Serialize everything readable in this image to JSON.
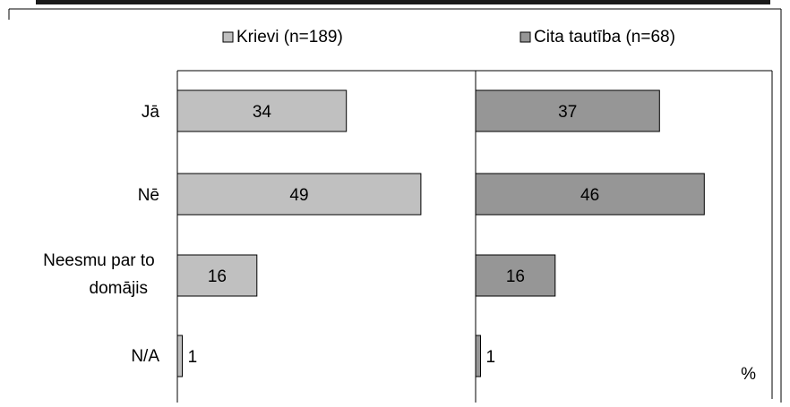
{
  "chart_data": {
    "type": "bar",
    "orientation": "horizontal",
    "layout": "two side-by-side panels sharing category rows",
    "title": "",
    "categories": [
      [
        "Jā"
      ],
      [
        "Nē"
      ],
      [
        "Neesmu par to",
        "domājis"
      ],
      [
        "N/A"
      ]
    ],
    "series": [
      {
        "name": "Krievi (n=189)",
        "values": [
          34,
          49,
          16,
          1
        ],
        "color": "#c0c0c0"
      },
      {
        "name": "Cita tautība (n=68)",
        "values": [
          37,
          46,
          16,
          1
        ],
        "color": "#969696"
      }
    ],
    "value_max": 60,
    "unit_label": "%",
    "legend_position": "top",
    "grid": false
  }
}
